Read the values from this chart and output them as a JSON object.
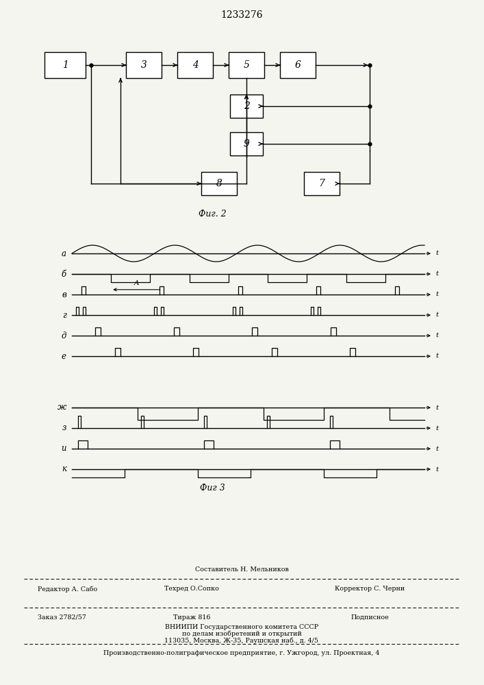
{
  "patent_number": "1233276",
  "fig2_title": "Фиг. 2",
  "fig3_title": "Фиг 3",
  "background_color": "#f5f5f0",
  "waveform_labels": [
    "a",
    "б",
    "в",
    "г",
    "д",
    "е",
    "ж",
    "з",
    "и",
    "к"
  ],
  "footer": {
    "line1_left": "Редактор А. Сабо",
    "line1_center": "Техред О.Сопко",
    "line1_right": "Корректор С. Черни",
    "line0_center": "Составитель Н. Мельников",
    "line2_left": "Заказ 2782/57",
    "line2_center": "Тираж 816",
    "line2_right": "Подписное",
    "line3": "ВНИИПИ Государственного комитета СССР",
    "line4": "по делам изобретений и открытий",
    "line5": "113035, Москва, Ж-35, Раушская наб., д. 4/5",
    "line6": "Производственно-полиграфическое предприятие, г. Ужгород, ул. Проектная, 4"
  }
}
